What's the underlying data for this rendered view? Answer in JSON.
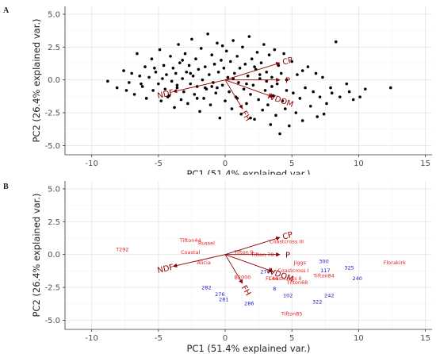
{
  "chart_data": [
    {
      "panel_letter": "A",
      "type": "scatter",
      "title": "",
      "xlabel": "PC1 (51.4% explained var.)",
      "ylabel": "PC2 (26.4% explained var.)",
      "xlim": [
        -12,
        15.5
      ],
      "ylim": [
        -5.7,
        5.6
      ],
      "xticks": [
        "-10",
        "-5",
        "0",
        "5",
        "10",
        "15"
      ],
      "yticks": [
        "5.0",
        "2.5",
        "0.0",
        "-2.5",
        "-5.0"
      ],
      "grid": true,
      "point_color": "#000000",
      "arrow_color": "#8b0000",
      "points": [
        [
          -8.8,
          -0.1
        ],
        [
          -8.1,
          -0.6
        ],
        [
          -7.6,
          0.7
        ],
        [
          -7.4,
          -0.8
        ],
        [
          -7.0,
          0.5
        ],
        [
          -6.8,
          -1.1
        ],
        [
          -6.6,
          2.0
        ],
        [
          -6.4,
          0.3
        ],
        [
          -6.2,
          -0.5
        ],
        [
          -6.0,
          1.0
        ],
        [
          -5.9,
          -1.4
        ],
        [
          -5.7,
          0.2
        ],
        [
          -5.5,
          1.6
        ],
        [
          -5.4,
          -0.8
        ],
        [
          -5.2,
          0.6
        ],
        [
          -5.0,
          -0.3
        ],
        [
          -4.9,
          2.3
        ],
        [
          -4.8,
          -1.6
        ],
        [
          -4.6,
          1.1
        ],
        [
          -4.5,
          -0.7
        ],
        [
          -4.4,
          0.4
        ],
        [
          -4.2,
          -1.2
        ],
        [
          -4.1,
          1.8
        ],
        [
          -4.0,
          -0.1
        ],
        [
          -3.9,
          0.9
        ],
        [
          -3.8,
          -2.1
        ],
        [
          -3.7,
          0.5
        ],
        [
          -3.6,
          -0.6
        ],
        [
          -3.5,
          2.7
        ],
        [
          -3.4,
          1.3
        ],
        [
          -3.3,
          -1.5
        ],
        [
          -3.2,
          0.1
        ],
        [
          -3.1,
          -0.9
        ],
        [
          -3.0,
          2.0
        ],
        [
          -2.9,
          0.6
        ],
        [
          -2.8,
          -1.8
        ],
        [
          -2.7,
          1.1
        ],
        [
          -2.6,
          -0.3
        ],
        [
          -2.5,
          3.1
        ],
        [
          -2.4,
          0.3
        ],
        [
          -2.3,
          -1.1
        ],
        [
          -2.2,
          1.6
        ],
        [
          -2.1,
          -0.5
        ],
        [
          -2.0,
          0.8
        ],
        [
          -1.9,
          -2.4
        ],
        [
          -1.8,
          2.4
        ],
        [
          -1.7,
          0.0
        ],
        [
          -1.6,
          -1.4
        ],
        [
          -1.5,
          1.0
        ],
        [
          -1.4,
          -0.7
        ],
        [
          -1.3,
          3.5
        ],
        [
          -1.2,
          0.4
        ],
        [
          -1.1,
          -1.9
        ],
        [
          -1.0,
          1.9
        ],
        [
          -0.9,
          -0.2
        ],
        [
          -0.8,
          1.2
        ],
        [
          -0.7,
          -1.0
        ],
        [
          -0.6,
          2.8
        ],
        [
          -0.5,
          0.6
        ],
        [
          -0.4,
          -2.9
        ],
        [
          -0.3,
          1.5
        ],
        [
          -0.2,
          -0.4
        ],
        [
          -0.1,
          0.9
        ],
        [
          0.0,
          -1.6
        ],
        [
          0.1,
          2.2
        ],
        [
          0.2,
          0.2
        ],
        [
          0.3,
          -0.9
        ],
        [
          0.4,
          1.4
        ],
        [
          0.5,
          -2.2
        ],
        [
          0.6,
          3.0
        ],
        [
          0.7,
          0.5
        ],
        [
          0.8,
          -1.3
        ],
        [
          0.9,
          1.8
        ],
        [
          1.0,
          -0.2
        ],
        [
          1.1,
          0.9
        ],
        [
          1.2,
          -2.6
        ],
        [
          1.3,
          2.5
        ],
        [
          1.4,
          -0.7
        ],
        [
          1.5,
          1.2
        ],
        [
          1.6,
          -1.8
        ],
        [
          1.7,
          0.3
        ],
        [
          1.8,
          3.3
        ],
        [
          1.9,
          -1.1
        ],
        [
          2.0,
          1.6
        ],
        [
          2.1,
          -0.4
        ],
        [
          2.2,
          -3.0
        ],
        [
          2.3,
          0.8
        ],
        [
          2.4,
          2.1
        ],
        [
          2.5,
          -1.5
        ],
        [
          2.6,
          0.1
        ],
        [
          2.7,
          1.3
        ],
        [
          2.8,
          -2.3
        ],
        [
          2.9,
          2.7
        ],
        [
          3.0,
          -0.8
        ],
        [
          3.1,
          0.6
        ],
        [
          3.2,
          -1.9
        ],
        [
          3.3,
          1.9
        ],
        [
          3.4,
          -3.4
        ],
        [
          3.5,
          0.2
        ],
        [
          3.6,
          -1.2
        ],
        [
          3.7,
          2.3
        ],
        [
          3.8,
          -2.7
        ],
        [
          3.9,
          -0.3
        ],
        [
          4.0,
          1.1
        ],
        [
          4.1,
          -4.1
        ],
        [
          4.2,
          0.5
        ],
        [
          4.3,
          -1.6
        ],
        [
          4.4,
          2.0
        ],
        [
          4.5,
          -2.2
        ],
        [
          4.6,
          0.0
        ],
        [
          4.8,
          -3.5
        ],
        [
          5.0,
          1.4
        ],
        [
          5.1,
          -1.0
        ],
        [
          5.3,
          -2.5
        ],
        [
          5.4,
          0.4
        ],
        [
          5.6,
          -1.4
        ],
        [
          5.8,
          -3.1
        ],
        [
          6.0,
          -0.6
        ],
        [
          6.2,
          1.0
        ],
        [
          6.4,
          -2.0
        ],
        [
          6.6,
          -0.9
        ],
        [
          6.9,
          -2.8
        ],
        [
          7.1,
          -1.3
        ],
        [
          7.3,
          0.2
        ],
        [
          7.6,
          -1.8
        ],
        [
          7.9,
          -0.6
        ],
        [
          8.3,
          2.9
        ],
        [
          8.6,
          -1.3
        ],
        [
          9.1,
          -0.3
        ],
        [
          9.6,
          -1.5
        ],
        [
          10.1,
          -1.3
        ],
        [
          10.5,
          -0.7
        ],
        [
          12.4,
          -0.6
        ],
        [
          -3.6,
          -0.4
        ],
        [
          -2.6,
          0.5
        ],
        [
          -1.5,
          -0.6
        ],
        [
          -0.6,
          -0.6
        ],
        [
          0.6,
          0.1
        ],
        [
          1.6,
          -0.3
        ],
        [
          2.6,
          0.4
        ],
        [
          3.1,
          -0.1
        ],
        [
          -5.3,
          0.9
        ],
        [
          -4.3,
          -1.3
        ],
        [
          -3.2,
          1.5
        ],
        [
          -2.1,
          -1.4
        ],
        [
          -1.0,
          -0.5
        ],
        [
          0.9,
          -1.4
        ],
        [
          2.2,
          1.0
        ],
        [
          3.5,
          -0.5
        ],
        [
          4.6,
          -0.8
        ],
        [
          -6.3,
          -0.3
        ],
        [
          -7.2,
          -0.2
        ],
        [
          5.8,
          0.7
        ],
        [
          6.8,
          0.5
        ],
        [
          7.4,
          -2.6
        ],
        [
          8.0,
          -1.0
        ],
        [
          9.3,
          -0.9
        ],
        [
          -4.7,
          0.1
        ],
        [
          -0.2,
          2.6
        ],
        [
          1.9,
          -2.9
        ]
      ],
      "arrows": [
        {
          "label": "CP",
          "x": 4.1,
          "y": 1.3
        },
        {
          "label": "P",
          "x": 4.1,
          "y": 0.0
        },
        {
          "label": "IVDOM",
          "x": 3.6,
          "y": -1.3
        },
        {
          "label": "FH",
          "x": 1.3,
          "y": -2.2
        },
        {
          "label": "NDF",
          "x": -3.9,
          "y": -0.9
        }
      ]
    },
    {
      "panel_letter": "B",
      "type": "scatter",
      "title": "",
      "xlabel": "PC1 (51.4% explained var.)",
      "ylabel": "PC2 (26.4% explained var.)",
      "xlim": [
        -12,
        15.5
      ],
      "ylim": [
        -5.7,
        5.6
      ],
      "xticks": [
        "-10",
        "-5",
        "0",
        "5",
        "10",
        "15"
      ],
      "yticks": [
        "5.0",
        "2.5",
        "0.0",
        "-2.5",
        "-5.0"
      ],
      "grid": true,
      "arrow_color": "#8b0000",
      "red_color": "#e8201e",
      "blue_color": "#1a1acc",
      "red_labels": [
        {
          "text": "T292",
          "x": -7.7,
          "y": 0.4
        },
        {
          "text": "Tifton44",
          "x": -2.6,
          "y": 1.1
        },
        {
          "text": "Russel",
          "x": -1.4,
          "y": 0.9
        },
        {
          "text": "Coastal",
          "x": -2.6,
          "y": 0.2
        },
        {
          "text": "Alicia",
          "x": -1.6,
          "y": -0.6
        },
        {
          "text": "Coastcross III",
          "x": 4.6,
          "y": 1.0
        },
        {
          "text": "Tifton 9",
          "x": 1.4,
          "y": 0.2
        },
        {
          "text": "Tifton 78",
          "x": 2.8,
          "y": 0.0
        },
        {
          "text": "Florakirk",
          "x": 12.7,
          "y": -0.6
        },
        {
          "text": "Jiggs",
          "x": 5.6,
          "y": -0.6
        },
        {
          "text": "Coastcross I",
          "x": 5.1,
          "y": -1.2
        },
        {
          "text": "Tifton84",
          "x": 7.4,
          "y": -1.6
        },
        {
          "text": "FL44",
          "x": 3.5,
          "y": -1.8
        },
        {
          "text": "Coastcross II",
          "x": 4.5,
          "y": -1.8
        },
        {
          "text": "Tifton68",
          "x": 5.4,
          "y": -2.1
        },
        {
          "text": "B2000",
          "x": 1.3,
          "y": -1.7
        },
        {
          "text": "Tifton85",
          "x": 5.0,
          "y": -4.5
        }
      ],
      "blue_labels": [
        {
          "text": "300",
          "x": 7.4,
          "y": -0.5
        },
        {
          "text": "325",
          "x": 9.3,
          "y": -1.0
        },
        {
          "text": "117",
          "x": 7.5,
          "y": -1.2
        },
        {
          "text": "240",
          "x": 9.9,
          "y": -1.8
        },
        {
          "text": "270",
          "x": 3.0,
          "y": -1.3
        },
        {
          "text": "8",
          "x": 3.7,
          "y": -2.6
        },
        {
          "text": "102",
          "x": 4.7,
          "y": -3.1
        },
        {
          "text": "242",
          "x": 7.8,
          "y": -3.1
        },
        {
          "text": "322",
          "x": 6.9,
          "y": -3.6
        },
        {
          "text": "282",
          "x": -1.4,
          "y": -2.5
        },
        {
          "text": "276",
          "x": -0.4,
          "y": -3.0
        },
        {
          "text": "281",
          "x": -0.1,
          "y": -3.4
        },
        {
          "text": "286",
          "x": 1.8,
          "y": -3.7
        }
      ],
      "arrows": [
        {
          "label": "CP",
          "x": 4.1,
          "y": 1.3
        },
        {
          "label": "P",
          "x": 4.1,
          "y": 0.0
        },
        {
          "label": "IVDOM",
          "x": 3.6,
          "y": -1.3
        },
        {
          "label": "FH",
          "x": 1.3,
          "y": -2.2
        },
        {
          "label": "NDF",
          "x": -3.9,
          "y": -0.9
        }
      ]
    }
  ]
}
